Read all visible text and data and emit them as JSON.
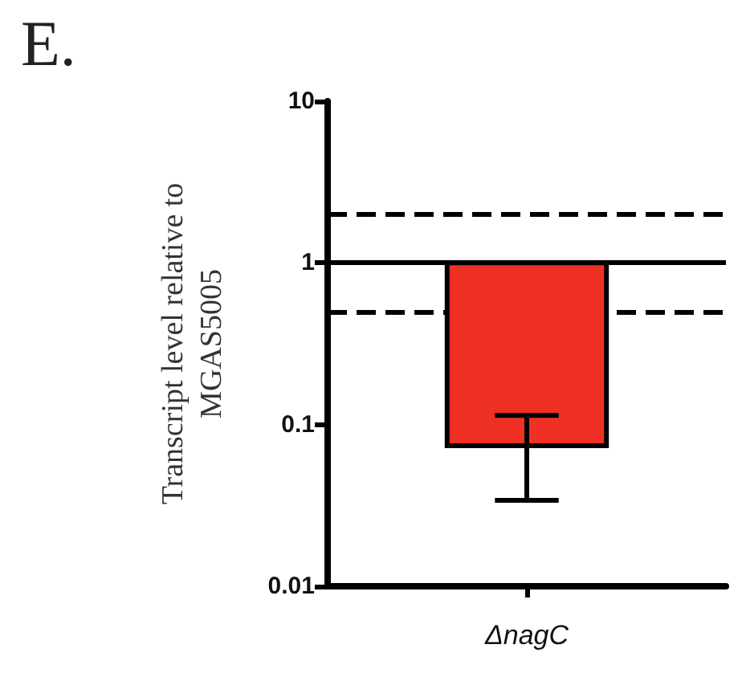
{
  "chart_data": {
    "type": "bar",
    "title": "E.",
    "ylabel": "Transcript level relative to\nMGAS5005",
    "categories": [
      "ΔnagC"
    ],
    "base": [
      1
    ],
    "values": [
      -0.926
    ],
    "errors": [
      0.04
    ],
    "color": "#ee3124",
    "log": "y",
    "ylim": [
      0.01,
      10
    ],
    "yticks": [
      0.01,
      0.1,
      1,
      10
    ],
    "grid": false,
    "legend": false,
    "ref_lines": [
      {
        "axis": "y",
        "value": 2,
        "line_style": "dashed",
        "color": "#000000"
      },
      {
        "axis": "y",
        "value": 1,
        "line_style": "solid",
        "color": "#000000"
      },
      {
        "axis": "y",
        "value": 0.5,
        "line_style": "dashed",
        "color": "#000000"
      }
    ]
  }
}
